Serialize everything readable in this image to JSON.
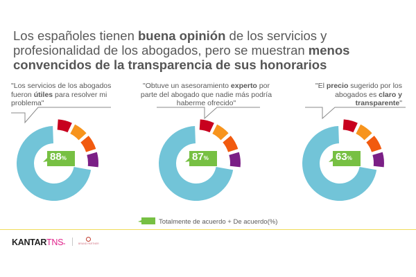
{
  "title": {
    "parts": [
      {
        "text": "Los españoles tienen ",
        "bold": false
      },
      {
        "text": "buena opinión",
        "bold": true
      },
      {
        "text": " de los servicios y profesionalidad de los abogados, pero se muestran ",
        "bold": false
      },
      {
        "text": "menos convencidos de la transparencia de sus honorarios",
        "bold": true
      }
    ]
  },
  "colors": {
    "agree": "#77c043",
    "main_ring": "#72c4d8",
    "segments": [
      "#c8001e",
      "#f7941d",
      "#f15a0f",
      "#7b1f86"
    ],
    "footer_line": "#f1dc5a",
    "brand_accent": "#e0218a"
  },
  "chart_data": {
    "type": "pie",
    "variant": "donut",
    "charts": [
      {
        "quote": [
          {
            "text": "\"Los servicios de los abogados fueron ",
            "bold": false
          },
          {
            "text": "útiles",
            "bold": true
          },
          {
            "text": " para resolver mi problema\"",
            "bold": false
          }
        ],
        "value_label": "88",
        "value_suffix": "%",
        "agree_percent": 88
      },
      {
        "quote": [
          {
            "text": "\"Obtuve un asesoramiento ",
            "bold": false
          },
          {
            "text": "experto",
            "bold": true
          },
          {
            "text": " por parte del abogado que nadie más podría haberme ofrecido\"",
            "bold": false
          }
        ],
        "value_label": "87",
        "value_suffix": "%",
        "agree_percent": 87
      },
      {
        "quote": [
          {
            "text": "\"El ",
            "bold": false
          },
          {
            "text": "precio",
            "bold": true
          },
          {
            "text": " sugerido por los abogados es ",
            "bold": false
          },
          {
            "text": "claro y transparente",
            "bold": true
          },
          {
            "text": "\"",
            "bold": false
          }
        ],
        "value_label": "63",
        "value_suffix": "%",
        "agree_percent": 63
      }
    ],
    "legend": [
      {
        "label": "Totalmente de acuerdo  + De acuerdo(%)",
        "color": "#77c043"
      }
    ],
    "legend_position": "bottom-center"
  },
  "footer": {
    "brand_main": "KANTAR",
    "brand_accent": "TNS",
    "brand_mark": "⁼",
    "partner_text": "BRAND PARTNER"
  }
}
